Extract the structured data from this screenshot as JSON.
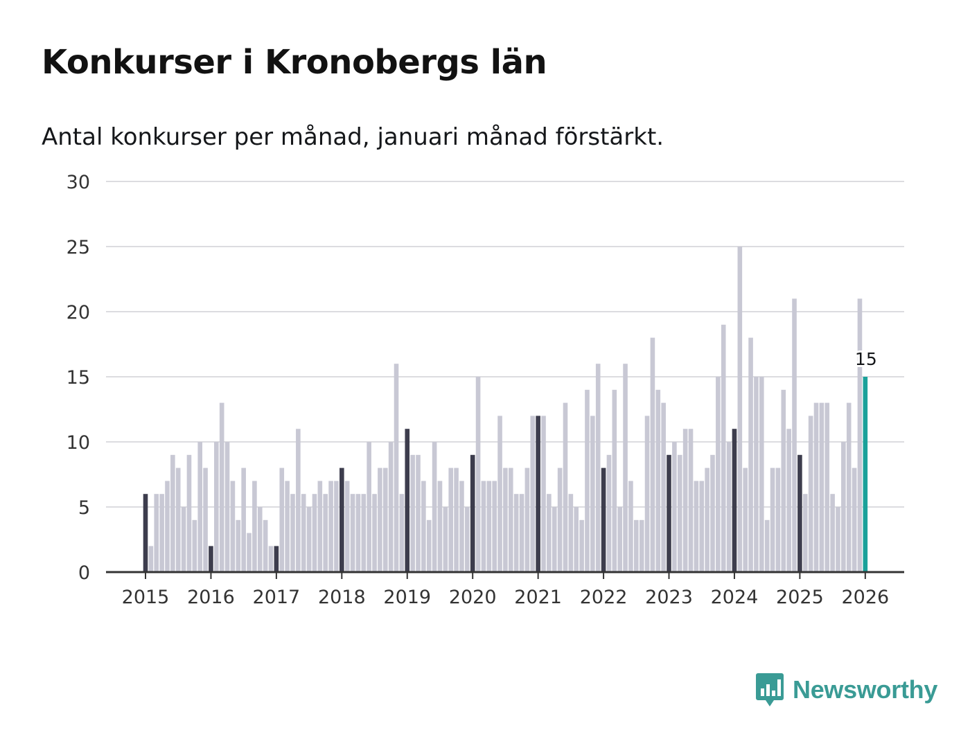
{
  "header": {
    "title": "Konkurser i Kronobergs län",
    "subtitle": "Antal konkurser per månad, januari månad förstärkt."
  },
  "brand": {
    "name": "Newsworthy",
    "color": "#3a9b95"
  },
  "colors": {
    "regular": "#c8c8d4",
    "january": "#3d3d4d",
    "highlight": "#1aa19a",
    "grid": "#dcdce0",
    "axis": "#333333"
  },
  "chart_data": {
    "type": "bar",
    "title": "Konkurser i Kronobergs län",
    "subtitle": "Antal konkurser per månad, januari månad förstärkt.",
    "xlabel": "",
    "ylabel": "",
    "ylim": [
      0,
      30
    ],
    "yticks": [
      0,
      5,
      10,
      15,
      20,
      25,
      30
    ],
    "xticks": [
      "2015",
      "2016",
      "2017",
      "2018",
      "2019",
      "2020",
      "2021",
      "2022",
      "2023",
      "2024",
      "2025",
      "2026"
    ],
    "start": "2015-01",
    "end": "2026-01",
    "grid": true,
    "highlight": {
      "label": "15",
      "period": "2026-01"
    },
    "values": [
      6,
      2,
      6,
      6,
      7,
      9,
      8,
      5,
      9,
      4,
      10,
      8,
      2,
      10,
      13,
      10,
      7,
      4,
      8,
      3,
      7,
      5,
      4,
      2,
      2,
      8,
      7,
      6,
      11,
      6,
      5,
      6,
      7,
      6,
      7,
      7,
      8,
      7,
      6,
      6,
      6,
      10,
      6,
      8,
      8,
      10,
      16,
      6,
      11,
      9,
      9,
      7,
      4,
      10,
      7,
      5,
      8,
      8,
      7,
      5,
      9,
      15,
      7,
      7,
      7,
      12,
      8,
      8,
      6,
      6,
      8,
      12,
      12,
      12,
      6,
      5,
      8,
      13,
      6,
      5,
      4,
      14,
      12,
      16,
      8,
      9,
      14,
      5,
      16,
      7,
      4,
      4,
      12,
      18,
      14,
      13,
      9,
      10,
      9,
      11,
      11,
      7,
      7,
      8,
      9,
      15,
      19,
      10,
      11,
      25,
      8,
      18,
      15,
      15,
      4,
      8,
      8,
      14,
      11,
      21,
      9,
      6,
      12,
      13,
      13,
      13,
      6,
      5,
      10,
      13,
      8,
      21,
      15
    ]
  }
}
